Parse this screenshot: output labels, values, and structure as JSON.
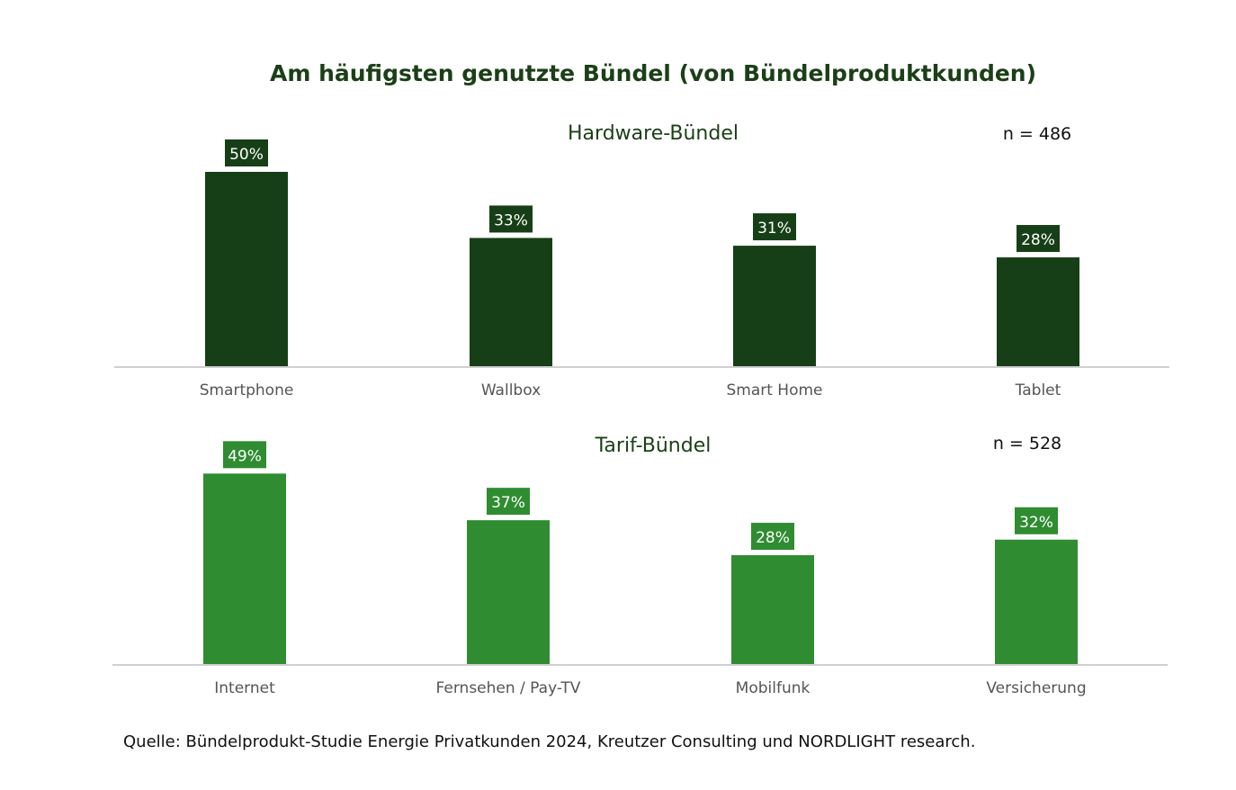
{
  "title": "Am häufigsten genutzte Bündel (von Bündelproduktkunden)",
  "source": "Quelle: Bündelprodukt-Studie Energie Privatkunden 2024, Kreutzer Consulting und NORDLIGHT research.",
  "colors": {
    "title": "#1b3f17",
    "hardware": "#173f17",
    "tarif": "#2f8c31",
    "axis": "#d0d0d0",
    "category_label": "#555555"
  },
  "chart_data": [
    {
      "type": "bar",
      "title": "Hardware-Bündel",
      "sample_size": "n = 486",
      "categories": [
        "Smartphone",
        "Wallbox",
        "Smart Home",
        "Tablet"
      ],
      "values": [
        50,
        33,
        31,
        28
      ],
      "data_labels": [
        "50%",
        "33%",
        "31%",
        "28%"
      ],
      "unit": "%",
      "grid": false,
      "legend": "none"
    },
    {
      "type": "bar",
      "title": "Tarif-Bündel",
      "sample_size": "n = 528",
      "categories": [
        "Internet",
        "Fernsehen / Pay-TV",
        "Mobilfunk",
        "Versicherung"
      ],
      "values": [
        49,
        37,
        28,
        32
      ],
      "data_labels": [
        "49%",
        "37%",
        "28%",
        "32%"
      ],
      "unit": "%",
      "grid": false,
      "legend": "none"
    }
  ]
}
